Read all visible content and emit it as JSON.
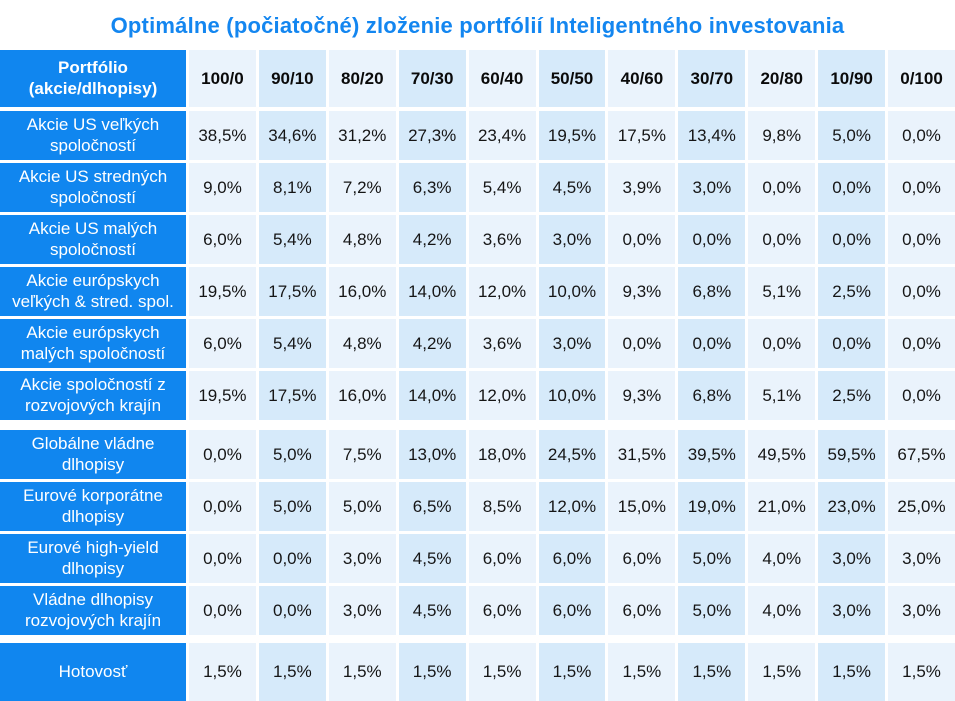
{
  "title": "Optimálne (počiatočné) zloženie portfólií Inteligentného investovania",
  "header_label": {
    "line1": "Portfólio",
    "line2": "(akcie/dlhopisy)"
  },
  "colors": {
    "accent_blue": "#1086ef",
    "title_text": "#1386f0",
    "pale_column": "#eaf3fc",
    "light_column": "#d6eafa",
    "value_text": "#151515"
  },
  "chart_data": {
    "type": "table",
    "title": "Optimálne (počiatočné) zloženie portfólií Inteligentného investovania",
    "row_header": "Portfólio (akcie/dlhopisy)",
    "columns": [
      "100/0",
      "90/10",
      "80/20",
      "70/30",
      "60/40",
      "50/50",
      "40/60",
      "30/70",
      "20/80",
      "10/90",
      "0/100"
    ],
    "groups": [
      {
        "name": "equities",
        "rows": [
          {
            "label": "Akcie US veľkých spoločností",
            "values": [
              "38,5%",
              "34,6%",
              "31,2%",
              "27,3%",
              "23,4%",
              "19,5%",
              "17,5%",
              "13,4%",
              "9,8%",
              "5,0%",
              "0,0%"
            ]
          },
          {
            "label": "Akcie US stredných spoločností",
            "values": [
              "9,0%",
              "8,1%",
              "7,2%",
              "6,3%",
              "5,4%",
              "4,5%",
              "3,9%",
              "3,0%",
              "0,0%",
              "0,0%",
              "0,0%"
            ]
          },
          {
            "label": "Akcie US malých spoločností",
            "values": [
              "6,0%",
              "5,4%",
              "4,8%",
              "4,2%",
              "3,6%",
              "3,0%",
              "0,0%",
              "0,0%",
              "0,0%",
              "0,0%",
              "0,0%"
            ]
          },
          {
            "label": "Akcie európskych veľkých & stred. spol.",
            "values": [
              "19,5%",
              "17,5%",
              "16,0%",
              "14,0%",
              "12,0%",
              "10,0%",
              "9,3%",
              "6,8%",
              "5,1%",
              "2,5%",
              "0,0%"
            ]
          },
          {
            "label": "Akcie európskych malých spoločností",
            "values": [
              "6,0%",
              "5,4%",
              "4,8%",
              "4,2%",
              "3,6%",
              "3,0%",
              "0,0%",
              "0,0%",
              "0,0%",
              "0,0%",
              "0,0%"
            ]
          },
          {
            "label": "Akcie spoločností z rozvojových krajín",
            "values": [
              "19,5%",
              "17,5%",
              "16,0%",
              "14,0%",
              "12,0%",
              "10,0%",
              "9,3%",
              "6,8%",
              "5,1%",
              "2,5%",
              "0,0%"
            ]
          }
        ]
      },
      {
        "name": "bonds",
        "rows": [
          {
            "label": "Globálne vládne dlhopisy",
            "values": [
              "0,0%",
              "5,0%",
              "7,5%",
              "13,0%",
              "18,0%",
              "24,5%",
              "31,5%",
              "39,5%",
              "49,5%",
              "59,5%",
              "67,5%"
            ]
          },
          {
            "label": "Eurové korporátne dlhopisy",
            "values": [
              "0,0%",
              "5,0%",
              "5,0%",
              "6,5%",
              "8,5%",
              "12,0%",
              "15,0%",
              "19,0%",
              "21,0%",
              "23,0%",
              "25,0%"
            ]
          },
          {
            "label": "Eurové high-yield dlhopisy",
            "values": [
              "0,0%",
              "0,0%",
              "3,0%",
              "4,5%",
              "6,0%",
              "6,0%",
              "6,0%",
              "5,0%",
              "4,0%",
              "3,0%",
              "3,0%"
            ]
          },
          {
            "label": "Vládne dlhopisy rozvojových krajín",
            "values": [
              "0,0%",
              "0,0%",
              "3,0%",
              "4,5%",
              "6,0%",
              "6,0%",
              "6,0%",
              "5,0%",
              "4,0%",
              "3,0%",
              "3,0%"
            ]
          }
        ]
      },
      {
        "name": "cash",
        "rows": [
          {
            "label": "Hotovosť",
            "values": [
              "1,5%",
              "1,5%",
              "1,5%",
              "1,5%",
              "1,5%",
              "1,5%",
              "1,5%",
              "1,5%",
              "1,5%",
              "1,5%",
              "1,5%"
            ]
          }
        ]
      }
    ]
  }
}
